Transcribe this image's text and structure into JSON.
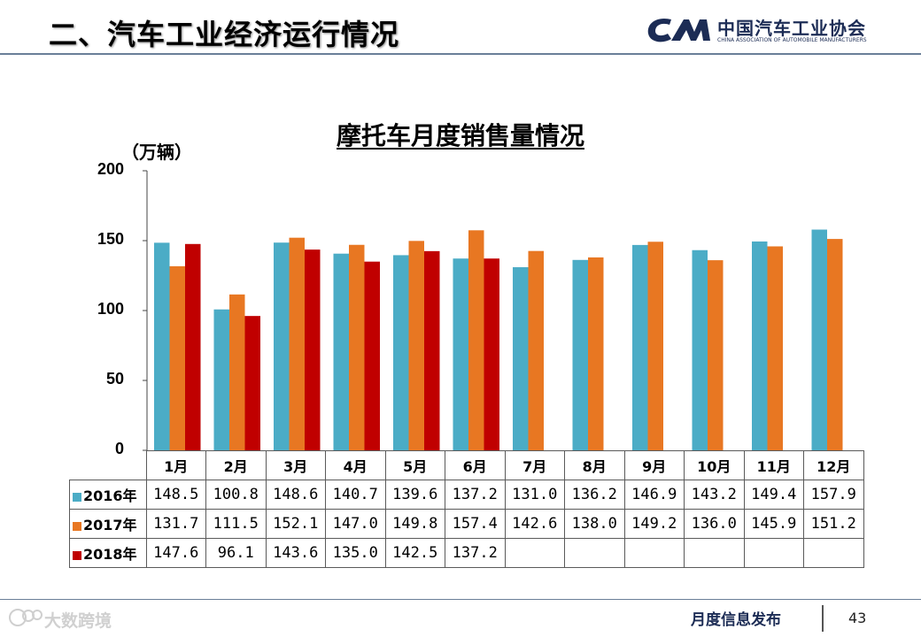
{
  "header": {
    "title": "二、汽车工业经济运行情况",
    "logo_cn": "中国汽车工业协会",
    "logo_en": "CHINA ASSOCIATION OF AUTOMOBILE MANUFACTURERS"
  },
  "footer": {
    "label": "月度信息发布",
    "page": "43",
    "watermark": "大数跨境"
  },
  "colors": {
    "2016": "#4bacc6",
    "2017": "#e87722",
    "2018": "#c00000",
    "rule": "#6a7f98",
    "brand": "#1c2c55"
  },
  "chart_data": {
    "type": "bar",
    "title": "摩托车月度销售量情况",
    "ylabel": "（万辆）",
    "ylim": [
      0,
      200
    ],
    "yticks": [
      "0",
      "50",
      "100",
      "150",
      "200"
    ],
    "legend": "data-table below plot",
    "categories": [
      "1月",
      "2月",
      "3月",
      "4月",
      "5月",
      "6月",
      "7月",
      "8月",
      "9月",
      "10月",
      "11月",
      "12月"
    ],
    "series": [
      {
        "name": "2016年",
        "values": [
          148.5,
          100.8,
          148.6,
          140.7,
          139.6,
          137.2,
          131.0,
          136.2,
          146.9,
          143.2,
          149.4,
          157.9
        ],
        "labels": [
          "148.5",
          "100.8",
          "148.6",
          "140.7",
          "139.6",
          "137.2",
          "131.0",
          "136.2",
          "146.9",
          "143.2",
          "149.4",
          "157.9"
        ]
      },
      {
        "name": "2017年",
        "values": [
          131.7,
          111.5,
          152.1,
          147.0,
          149.8,
          157.4,
          142.6,
          138.0,
          149.2,
          136.0,
          145.9,
          151.2
        ],
        "labels": [
          "131.7",
          "111.5",
          "152.1",
          "147.0",
          "149.8",
          "157.4",
          "142.6",
          "138.0",
          "149.2",
          "136.0",
          "145.9",
          "151.2"
        ]
      },
      {
        "name": "2018年",
        "values": [
          147.6,
          96.1,
          143.6,
          135.0,
          142.5,
          137.2,
          null,
          null,
          null,
          null,
          null,
          null
        ],
        "labels": [
          "147.6",
          "96.1",
          "143.6",
          "135.0",
          "142.5",
          "137.2",
          "",
          "",
          "",
          "",
          "",
          ""
        ]
      }
    ]
  }
}
